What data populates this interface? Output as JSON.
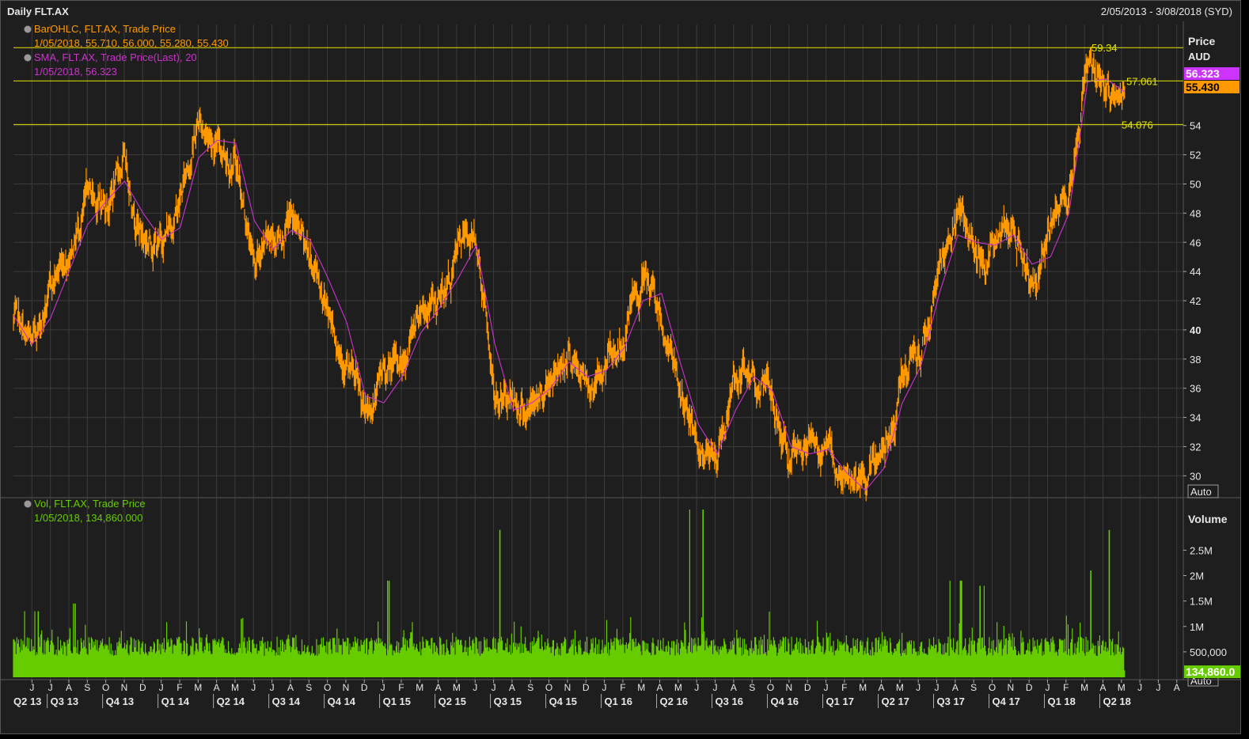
{
  "header": {
    "title": "Daily FLT.AX",
    "date_range": "2/05/2013 - 3/08/2018 (SYD)"
  },
  "price_pane": {
    "axis_title": "Price",
    "axis_unit": "AUD",
    "auto_label": "Auto",
    "legend": [
      {
        "title": "BarOHLC, FLT.AX, Trade Price",
        "values": "1/05/2018, 55.710, 56.000, 55.280, 55.430",
        "color": "#ff9900"
      },
      {
        "title": "SMA, FLT.AX, Trade Price(Last),  20",
        "values": "1/05/2018, 56.323",
        "color": "#cc33cc"
      }
    ],
    "hlines": [
      {
        "value": 59.34,
        "label": "59.34"
      },
      {
        "value": 57.061,
        "label": "57.061"
      },
      {
        "value": 54.076,
        "label": "54.076"
      }
    ],
    "last_badges": [
      {
        "label": "56.323",
        "bg": "#cc33ff",
        "fg": "#ffffff"
      },
      {
        "label": "55.430",
        "bg": "#ff9900",
        "fg": "#000000"
      }
    ]
  },
  "volume_pane": {
    "axis_title": "Volume",
    "auto_label": "Auto",
    "legend": {
      "title": "Vol, FLT.AX, Trade Price",
      "values": "1/05/2018, 134,860.000",
      "color": "#66cc00"
    },
    "last_badge": {
      "label": "134,860.0",
      "bg": "#66cc00",
      "fg": "#ffffff"
    }
  },
  "colors": {
    "bars": "#ff9900",
    "sma": "#cc33cc",
    "volume": "#66cc00",
    "hline": "#e6e600",
    "grid": "#3c3c3c",
    "background": "#1e1e1e"
  },
  "chart_data": [
    {
      "type": "line",
      "name": "price",
      "ylim": [
        28.5,
        60.6
      ],
      "ytick_labels": [
        "30",
        "32",
        "34",
        "36",
        "38",
        "40",
        "42",
        "44",
        "46",
        "48",
        "50",
        "52",
        "54"
      ],
      "x_months": [
        "2013-05",
        "2013-06",
        "2013-07",
        "2013-08",
        "2013-09",
        "2013-10",
        "2013-11",
        "2013-12",
        "2014-01",
        "2014-02",
        "2014-03",
        "2014-04",
        "2014-05",
        "2014-06",
        "2014-07",
        "2014-08",
        "2014-09",
        "2014-10",
        "2014-11",
        "2014-12",
        "2015-01",
        "2015-02",
        "2015-03",
        "2015-04",
        "2015-05",
        "2015-06",
        "2015-07",
        "2015-08",
        "2015-09",
        "2015-10",
        "2015-11",
        "2015-12",
        "2016-01",
        "2016-02",
        "2016-03",
        "2016-04",
        "2016-05",
        "2016-06",
        "2016-07",
        "2016-08",
        "2016-09",
        "2016-10",
        "2016-11",
        "2016-12",
        "2017-01",
        "2017-02",
        "2017-03",
        "2017-04",
        "2017-05",
        "2017-06",
        "2017-07",
        "2017-08",
        "2017-09",
        "2017-10",
        "2017-11",
        "2017-12",
        "2018-01",
        "2018-02",
        "2018-03",
        "2018-04",
        "2018-05"
      ],
      "series": [
        {
          "name": "BarOHLC, FLT.AX, Trade Price",
          "values": [
            40.5,
            38.5,
            42.5,
            45.8,
            49.0,
            48.6,
            51.5,
            46.5,
            46.0,
            49.0,
            54.5,
            52.8,
            52.0,
            44.5,
            46.0,
            47.6,
            45.0,
            42.0,
            38.0,
            33.5,
            37.0,
            37.5,
            42.0,
            41.5,
            45.0,
            46.8,
            35.0,
            35.5,
            34.5,
            37.0,
            38.5,
            36.0,
            38.0,
            39.5,
            43.5,
            41.0,
            36.0,
            32.0,
            31.0,
            36.5,
            37.0,
            35.0,
            30.5,
            32.0,
            31.5,
            29.5,
            28.8,
            32.0,
            37.0,
            38.5,
            44.5,
            48.0,
            45.0,
            46.5,
            47.0,
            44.0,
            46.5,
            49.0,
            59.0,
            56.0,
            55.43
          ]
        },
        {
          "name": "SMA, FLT.AX, Trade Price(Last),  20",
          "values": [
            41.0,
            39.0,
            40.8,
            44.0,
            47.2,
            48.8,
            50.2,
            48.0,
            46.2,
            47.0,
            51.8,
            53.0,
            52.8,
            47.5,
            45.5,
            46.8,
            46.2,
            43.5,
            40.5,
            35.5,
            35.0,
            36.8,
            39.8,
            41.5,
            43.5,
            45.8,
            39.0,
            34.5,
            35.0,
            36.0,
            37.8,
            36.8,
            37.2,
            38.8,
            42.0,
            42.5,
            37.8,
            33.5,
            31.5,
            34.5,
            36.8,
            35.8,
            32.0,
            31.5,
            31.8,
            30.2,
            29.0,
            30.5,
            35.0,
            37.5,
            42.5,
            46.5,
            46.0,
            45.8,
            46.5,
            44.5,
            45.0,
            48.0,
            57.0,
            57.2,
            56.323
          ]
        }
      ]
    },
    {
      "type": "bar",
      "name": "volume",
      "ytick_labels": [
        "500,000",
        "1M",
        "1.5M",
        "2M",
        "2.5M"
      ],
      "ylim": [
        0,
        3300000
      ],
      "volume_base": 420000,
      "volume_noise": 380000,
      "volume_last": 134860,
      "volume_spikes": [
        {
          "month": "2013-06",
          "value": 1300000
        },
        {
          "month": "2013-08",
          "value": 1450000
        },
        {
          "month": "2014-05",
          "value": 1150000
        },
        {
          "month": "2015-01",
          "value": 1900000
        },
        {
          "month": "2015-07",
          "value": 2900000
        },
        {
          "month": "2016-06",
          "value": 3300000
        },
        {
          "month": "2017-08",
          "value": 1900000
        },
        {
          "month": "2017-09",
          "value": 1800000
        },
        {
          "month": "2018-03",
          "value": 2100000
        },
        {
          "month": "2018-04",
          "value": 2900000
        }
      ]
    }
  ],
  "month_labels": [
    "J",
    "J",
    "A",
    "S",
    "O",
    "N",
    "D",
    "J",
    "F",
    "M",
    "A",
    "M",
    "J",
    "J",
    "A",
    "S",
    "O",
    "N",
    "D",
    "J",
    "F",
    "M",
    "A",
    "M",
    "J",
    "J",
    "A",
    "S",
    "O",
    "N",
    "D",
    "J",
    "F",
    "M",
    "A",
    "M",
    "J",
    "J",
    "A",
    "S",
    "O",
    "N",
    "D",
    "J",
    "F",
    "M",
    "A",
    "M",
    "J",
    "J",
    "A",
    "S",
    "O",
    "N",
    "D",
    "J",
    "F",
    "M",
    "A",
    "M",
    "J",
    "J",
    "A"
  ],
  "quarter_labels": [
    "Q2 13",
    "Q3 13",
    "Q4 13",
    "Q1 14",
    "Q2 14",
    "Q3 14",
    "Q4 14",
    "Q1 15",
    "Q2 15",
    "Q3 15",
    "Q4 15",
    "Q1 16",
    "Q2 16",
    "Q3 16",
    "Q4 16",
    "Q1 17",
    "Q2 17",
    "Q3 17",
    "Q4 17",
    "Q1 18",
    "Q2 18"
  ]
}
